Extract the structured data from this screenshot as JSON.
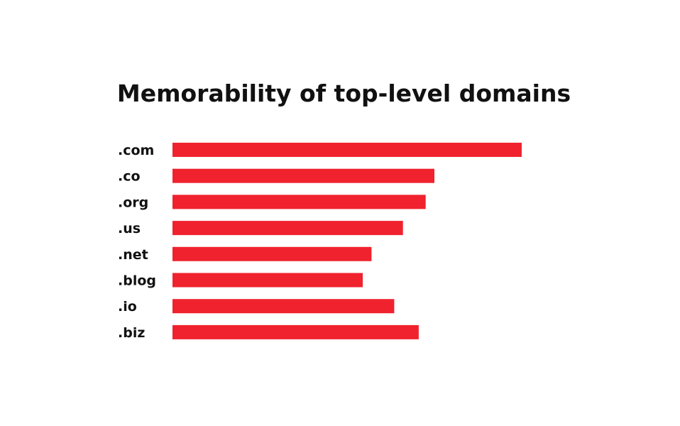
{
  "chart_data": {
    "type": "bar",
    "orientation": "horizontal",
    "title": "Memorability of top-level domains",
    "xlabel": "",
    "ylabel": "",
    "categories": [
      ".com",
      ".co",
      ".org",
      ".us",
      ".net",
      ".blog",
      ".io",
      ".biz"
    ],
    "values": [
      100,
      75,
      72.5,
      66,
      57,
      54.5,
      63.5,
      70.5
    ],
    "xlim": [
      0,
      100
    ],
    "grid": false,
    "legend": "none",
    "bar_color": "#f0222e"
  }
}
